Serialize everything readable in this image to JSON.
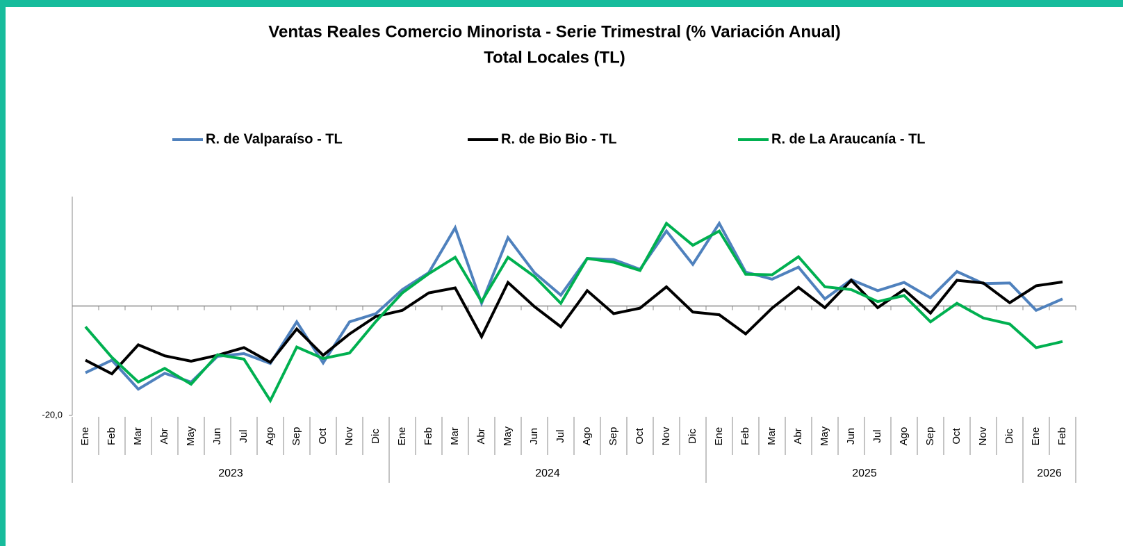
{
  "chart_data": {
    "type": "line",
    "title": "Ventas Reales Comercio Minorista - Serie Trimestral (% Variación Anual)",
    "subtitle": "Total Locales (TL)",
    "categories": [
      "Ene",
      "Feb",
      "Mar",
      "Abr",
      "May",
      "Jun",
      "Jul",
      "Ago",
      "Sep",
      "Oct",
      "Nov",
      "Dic",
      "Ene",
      "Feb",
      "Mar",
      "Abr",
      "May",
      "Jun",
      "Jul",
      "Ago",
      "Sep",
      "Oct",
      "Nov",
      "Dic",
      "Ene",
      "Feb",
      "Mar",
      "Abr",
      "May",
      "Jun",
      "Jul",
      "Ago",
      "Sep",
      "Oct",
      "Nov",
      "Dic",
      "Ene",
      "Feb"
    ],
    "years": [
      "2023",
      "2024",
      "2025",
      "2026"
    ],
    "ylim": [
      -20,
      20
    ],
    "yticks": [
      {
        "value": -20,
        "label": "-20,0"
      }
    ],
    "series": [
      {
        "name": "R. de Valparaíso - TL",
        "color": "#4f81bd",
        "values": [
          -12.2,
          -9.9,
          -15.2,
          -12.3,
          -13.9,
          -9.2,
          -8.7,
          -10.5,
          -2.9,
          -10.4,
          -2.9,
          -1.4,
          3.0,
          6.1,
          14.3,
          0.5,
          12.5,
          6.1,
          2.0,
          8.7,
          8.5,
          6.7,
          13.7,
          7.6,
          15.1,
          6.2,
          4.9,
          7.1,
          1.3,
          4.8,
          2.8,
          4.3,
          1.5,
          6.3,
          4.1,
          4.2,
          -0.8,
          1.3
        ]
      },
      {
        "name": "R. de Bio Bio - TL",
        "color": "#000000",
        "values": [
          -9.9,
          -12.4,
          -7.1,
          -9.1,
          -10.1,
          -9.0,
          -7.6,
          -10.3,
          -4.2,
          -9.0,
          -5.1,
          -1.9,
          -0.8,
          2.4,
          3.3,
          -5.6,
          4.3,
          -0.1,
          -3.8,
          2.8,
          -1.4,
          -0.4,
          3.5,
          -1.1,
          -1.6,
          -5.1,
          -0.4,
          3.4,
          -0.3,
          4.7,
          -0.3,
          3.0,
          -1.3,
          4.7,
          4.2,
          0.6,
          3.7,
          4.4
        ]
      },
      {
        "name": "R. de La Araucanía - TL",
        "color": "#00b050",
        "values": [
          -3.8,
          -9.4,
          -13.9,
          -11.4,
          -14.3,
          -8.9,
          -9.7,
          -17.3,
          -7.5,
          -9.6,
          -8.6,
          -2.8,
          2.4,
          5.9,
          8.9,
          0.8,
          8.9,
          5.4,
          0.5,
          8.7,
          8.0,
          6.5,
          15.1,
          11.1,
          13.7,
          5.8,
          5.7,
          9.0,
          3.5,
          3.0,
          0.8,
          1.9,
          -2.9,
          0.5,
          -2.2,
          -3.3,
          -7.6,
          -6.5
        ]
      }
    ]
  }
}
